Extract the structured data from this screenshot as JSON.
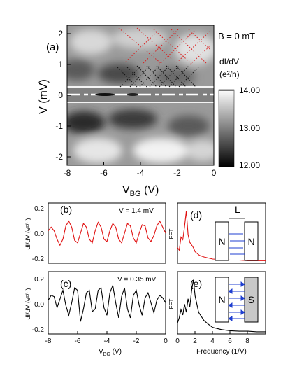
{
  "panel_a": {
    "label": "(a)",
    "field": "B = 0 mT",
    "ylabel": "V (mV)",
    "xlabel_main": "V",
    "xlabel_sub": "BG",
    "xlabel_unit": " (V)",
    "colorbar_title_1": "dI/dV",
    "colorbar_title_2": "(e²/h)",
    "colorbar_ticks": [
      "14.00",
      "13.00",
      "12.00"
    ],
    "xticks": [
      "-8",
      "-6",
      "-4",
      "-2",
      "0"
    ],
    "yticks": [
      "2",
      "1",
      "0",
      "-1",
      "-2"
    ],
    "colormap": [
      "#000000",
      "#ffffff"
    ],
    "dash_colors": [
      "#d92020",
      "#000000"
    ]
  },
  "panel_b": {
    "label": "(b)",
    "annotation": "V = 1.4 mV",
    "yticks": [
      "0.2",
      "0.0",
      "-0.2"
    ],
    "ylabel": "dI/dV (e²/h)",
    "color": "#e01010"
  },
  "panel_c": {
    "label": "(c)",
    "annotation": "V = 0.35 mV",
    "yticks": [
      "0.2",
      "0.0",
      "-0.2"
    ],
    "ylabel": "dI/dV (e²/h)",
    "xticks": [
      "-8",
      "-6",
      "-4",
      "-2",
      "0"
    ],
    "xlabel": "V",
    "xlabel_sub": "BG",
    "xlabel_unit": " (V)",
    "color": "#000000"
  },
  "panel_d": {
    "label": "(d)",
    "ylabel": "FFT",
    "length_label": "L",
    "left_box": "N",
    "right_box": "N",
    "color": "#e01010"
  },
  "panel_e": {
    "label": "(e)",
    "ylabel": "FFT",
    "left_box": "N",
    "right_box": "S",
    "xticks": [
      "0",
      "2",
      "4",
      "6",
      "8"
    ],
    "xlabel": "Frequency (1/V)",
    "color": "#000000",
    "arrow_color": "#1f3fd0"
  },
  "chart_data": [
    {
      "type": "heatmap",
      "xlabel": "VBG (V)",
      "ylabel": "V (mV)",
      "xlim": [
        -8,
        0
      ],
      "ylim": [
        -2.3,
        2.3
      ],
      "colorbar_range": [
        12.0,
        14.0
      ],
      "colorbar_label": "dI/dV (e²/h)"
    },
    {
      "type": "line",
      "annotation": "V = 1.4 mV",
      "xlim": [
        -8,
        0
      ],
      "ylim": [
        -0.25,
        0.25
      ],
      "series": [
        {
          "x": [
            -8,
            -7.8,
            -7.6,
            -7.4,
            -7.2,
            -7,
            -6.8,
            -6.6,
            -6.4,
            -6.2,
            -6,
            -5.8,
            -5.6,
            -5.4,
            -5.2,
            -5,
            -4.8,
            -4.6,
            -4.4,
            -4.2,
            -4,
            -3.8,
            -3.6,
            -3.4,
            -3.2,
            -3,
            -2.8,
            -2.6,
            -2.4,
            -2.2,
            -2,
            -1.8,
            -1.6,
            -1.4,
            -1.2,
            -1,
            -0.8,
            -0.6,
            -0.4,
            -0.2,
            0
          ],
          "y": [
            0.02,
            0.05,
            0.02,
            -0.05,
            -0.1,
            -0.05,
            0.06,
            0.1,
            0.05,
            -0.06,
            -0.08,
            0.0,
            0.08,
            0.05,
            -0.05,
            -0.08,
            0.02,
            0.09,
            0.05,
            -0.05,
            -0.07,
            0.02,
            0.08,
            0.05,
            -0.05,
            -0.08,
            0.0,
            0.08,
            0.06,
            -0.04,
            -0.08,
            0.0,
            0.07,
            0.06,
            -0.04,
            -0.07,
            -0.02,
            0.06,
            0.1,
            0.05,
            0.0
          ]
        }
      ]
    },
    {
      "type": "line",
      "annotation": "V = 0.35 mV",
      "xlim": [
        -8,
        0
      ],
      "ylim": [
        -0.25,
        0.25
      ],
      "series": [
        {
          "x": [
            -8,
            -7.8,
            -7.6,
            -7.4,
            -7.2,
            -7,
            -6.8,
            -6.6,
            -6.4,
            -6.2,
            -6,
            -5.8,
            -5.6,
            -5.4,
            -5.2,
            -5,
            -4.8,
            -4.6,
            -4.4,
            -4.2,
            -4,
            -3.8,
            -3.6,
            -3.4,
            -3.2,
            -3,
            -2.8,
            -2.6,
            -2.4,
            -2.2,
            -2,
            -1.8,
            -1.6,
            -1.4,
            -1.2,
            -1,
            -0.8,
            -0.6,
            -0.4,
            -0.2,
            0
          ],
          "y": [
            0.02,
            0.06,
            0.05,
            -0.04,
            0.03,
            0.1,
            -0.02,
            -0.1,
            0.0,
            0.12,
            0.1,
            -0.15,
            -0.05,
            0.08,
            0.1,
            -0.07,
            -0.05,
            0.1,
            0.12,
            -0.04,
            -0.1,
            0.08,
            0.14,
            0.0,
            -0.12,
            0.05,
            0.12,
            -0.05,
            -0.12,
            0.06,
            0.1,
            -0.02,
            -0.1,
            0.04,
            0.08,
            0.0,
            -0.08,
            0.02,
            0.06,
            0.04,
            0.0
          ]
        }
      ]
    },
    {
      "type": "line",
      "xlim": [
        0,
        10
      ],
      "series": [
        {
          "x": [
            0,
            0.2,
            0.4,
            0.6,
            0.8,
            1.0,
            1.2,
            1.4,
            1.6,
            1.8,
            2.0,
            2.5,
            3,
            3.5,
            4,
            5,
            6,
            7,
            8,
            9,
            10
          ],
          "y": [
            0.3,
            0.25,
            0.5,
            0.45,
            0.7,
            1.0,
            0.55,
            0.4,
            0.35,
            0.3,
            0.22,
            0.15,
            0.12,
            0.1,
            0.08,
            0.07,
            0.06,
            0.06,
            0.05,
            0.05,
            0.05
          ]
        }
      ]
    },
    {
      "type": "line",
      "xlabel": "Frequency (1/V)",
      "xlim": [
        0,
        10
      ],
      "series": [
        {
          "x": [
            0,
            0.2,
            0.4,
            0.6,
            0.8,
            1.0,
            1.2,
            1.4,
            1.6,
            1.8,
            2.0,
            2.2,
            2.4,
            2.6,
            2.8,
            3.0,
            3.5,
            4,
            5,
            6,
            7,
            8,
            9,
            10
          ],
          "y": [
            0.2,
            0.3,
            0.45,
            0.35,
            0.55,
            0.4,
            0.65,
            0.5,
            0.8,
            1.0,
            0.7,
            0.55,
            0.4,
            0.35,
            0.3,
            0.25,
            0.18,
            0.12,
            0.08,
            0.06,
            0.05,
            0.05,
            0.04,
            0.04
          ]
        }
      ]
    }
  ]
}
